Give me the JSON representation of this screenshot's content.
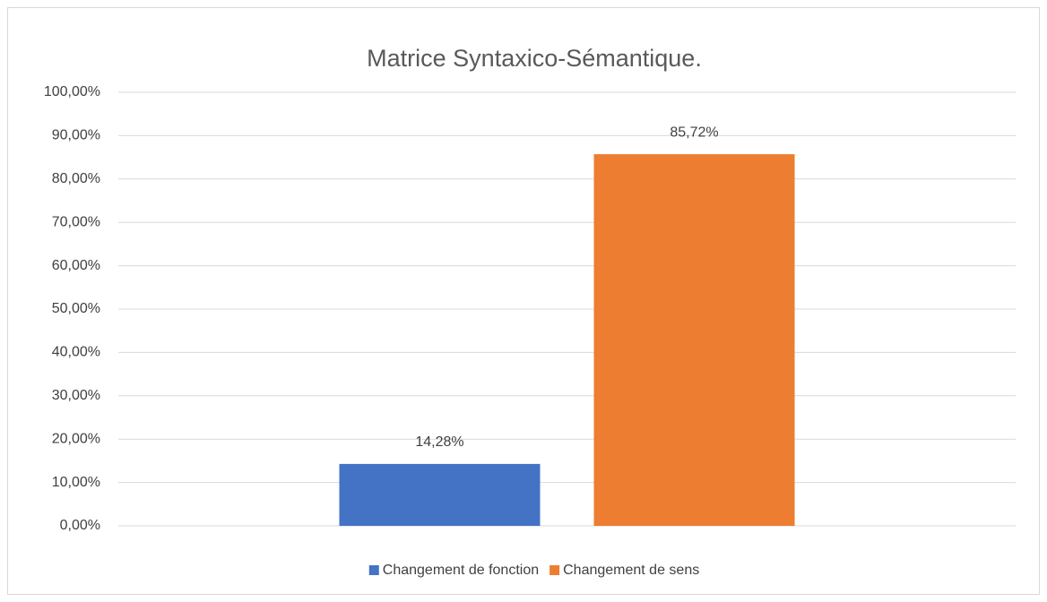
{
  "chart_data": {
    "type": "bar",
    "title": "Matrice Syntaxico-Sémantique.",
    "categories": [
      null
    ],
    "series": [
      {
        "name": "Changement de fonction",
        "color": "#4472c4",
        "values": [
          14.28
        ],
        "value_labels": [
          "14,28%"
        ]
      },
      {
        "name": "Changement de sens",
        "color": "#ed7d31",
        "values": [
          85.72
        ],
        "value_labels": [
          "85,72%"
        ]
      }
    ],
    "ylim": [
      0,
      100
    ],
    "yticks": [
      {
        "value": 0,
        "label": "0,00%"
      },
      {
        "value": 10,
        "label": "10,00%"
      },
      {
        "value": 20,
        "label": "20,00%"
      },
      {
        "value": 30,
        "label": "30,00%"
      },
      {
        "value": 40,
        "label": "40,00%"
      },
      {
        "value": 50,
        "label": "50,00%"
      },
      {
        "value": 60,
        "label": "60,00%"
      },
      {
        "value": 70,
        "label": "70,00%"
      },
      {
        "value": 80,
        "label": "80,00%"
      },
      {
        "value": 90,
        "label": "90,00%"
      },
      {
        "value": 100,
        "label": "100,00%"
      }
    ],
    "grid": true,
    "legend": "bottom"
  }
}
